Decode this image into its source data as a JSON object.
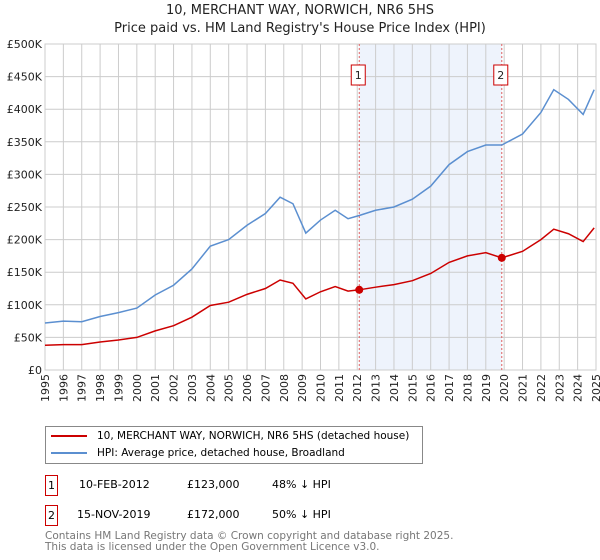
{
  "chart_data": {
    "type": "line",
    "title": "10, MERCHANT WAY, NORWICH, NR6 5HS",
    "subtitle": "Price paid vs. HM Land Registry's House Price Index (HPI)",
    "xlim": [
      1995,
      2025
    ],
    "ylim": [
      0,
      500000
    ],
    "x_ticks": [
      "1995",
      "1996",
      "1997",
      "1998",
      "1999",
      "2000",
      "2001",
      "2002",
      "2003",
      "2004",
      "2005",
      "2006",
      "2007",
      "2008",
      "2009",
      "2010",
      "2011",
      "2012",
      "2013",
      "2014",
      "2015",
      "2016",
      "2017",
      "2018",
      "2019",
      "2020",
      "2021",
      "2022",
      "2023",
      "2024",
      "2025"
    ],
    "y_ticks": [
      "£0",
      "£50K",
      "£100K",
      "£150K",
      "£200K",
      "£250K",
      "£300K",
      "£350K",
      "£400K",
      "£450K",
      "£500K"
    ],
    "grid": true,
    "shaded_range": [
      2012.11,
      2019.87
    ],
    "series": [
      {
        "name": "10, MERCHANT WAY, NORWICH, NR6 5HS (detached house)",
        "color": "#cc0000",
        "x": [
          1995,
          1996,
          1997,
          1998,
          1999,
          2000,
          2001,
          2002,
          2003,
          2004,
          2005,
          2006,
          2007,
          2007.8,
          2008.5,
          2009.2,
          2010,
          2010.8,
          2011.5,
          2012.11,
          2013,
          2014,
          2015,
          2016,
          2017,
          2018,
          2019,
          2019.87,
          2021,
          2022,
          2022.7,
          2023.5,
          2024.3,
          2024.9
        ],
        "y": [
          38000,
          39000,
          39000,
          43000,
          46000,
          50000,
          60000,
          68000,
          81000,
          99000,
          104000,
          116000,
          125000,
          138000,
          133000,
          109000,
          120000,
          128000,
          121000,
          123000,
          127000,
          131000,
          137000,
          148000,
          165000,
          175000,
          180000,
          172000,
          182000,
          200000,
          216000,
          209000,
          197000,
          218000
        ]
      },
      {
        "name": "HPI: Average price, detached house, Broadland",
        "color": "#5b8fd0",
        "x": [
          1995,
          1996,
          1997,
          1998,
          1999,
          2000,
          2001,
          2002,
          2003,
          2004,
          2005,
          2006,
          2007,
          2007.8,
          2008.5,
          2009.2,
          2010,
          2010.8,
          2011.5,
          2012.11,
          2013,
          2014,
          2015,
          2016,
          2017,
          2018,
          2019,
          2019.87,
          2021,
          2022,
          2022.7,
          2023.5,
          2024.3,
          2024.9
        ],
        "y": [
          72000,
          75000,
          74000,
          82000,
          88000,
          95000,
          115000,
          130000,
          155000,
          190000,
          200000,
          222000,
          240000,
          265000,
          255000,
          210000,
          230000,
          245000,
          232000,
          237000,
          245000,
          250000,
          262000,
          282000,
          315000,
          335000,
          345000,
          345000,
          362000,
          395000,
          430000,
          415000,
          392000,
          430000
        ]
      }
    ],
    "markers": [
      {
        "label": "1",
        "x": 2012.11,
        "y": 123000
      },
      {
        "label": "2",
        "x": 2019.87,
        "y": 172000
      }
    ]
  },
  "legend": {
    "items": [
      "10, MERCHANT WAY, NORWICH, NR6 5HS (detached house)",
      "HPI: Average price, detached house, Broadland"
    ]
  },
  "transactions": [
    {
      "num": "1",
      "date": "10-FEB-2012",
      "price": "£123,000",
      "hpi": "48% ↓ HPI"
    },
    {
      "num": "2",
      "date": "15-NOV-2019",
      "price": "£172,000",
      "hpi": "50% ↓ HPI"
    }
  ],
  "footer": {
    "line1": "Contains HM Land Registry data © Crown copyright and database right 2025.",
    "line2": "This data is licensed under the Open Government Licence v3.0."
  }
}
